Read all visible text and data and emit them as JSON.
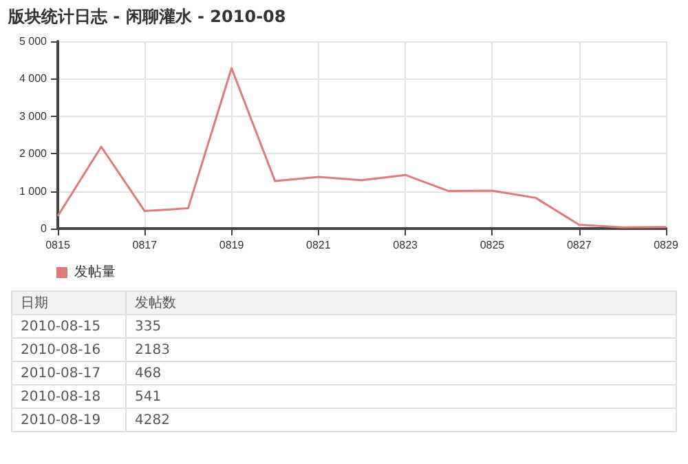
{
  "chart_data": [
    {
      "type": "line",
      "title": "版块统计日志 - 闲聊灌水 - 2010-08",
      "x": [
        "2010-08-15",
        "2010-08-16",
        "2010-08-17",
        "2010-08-18",
        "2010-08-19",
        "2010-08-20",
        "2010-08-21",
        "2010-08-22",
        "2010-08-23",
        "2010-08-24",
        "2010-08-25",
        "2010-08-26",
        "2010-08-27",
        "2010-08-28",
        "2010-08-29"
      ],
      "series": [
        {
          "name": "发帖量",
          "color": "#e07b7b",
          "values": [
            335,
            2183,
            468,
            541,
            4282,
            1270,
            1380,
            1290,
            1430,
            1000,
            1010,
            820,
            100,
            30,
            40
          ]
        }
      ],
      "xlim": [
        "2010-08-15",
        "2010-08-29"
      ],
      "xticks": [
        {
          "value": "2010-08-15",
          "label": "0815"
        },
        {
          "value": "2010-08-17",
          "label": "0817"
        },
        {
          "value": "2010-08-19",
          "label": "0819"
        },
        {
          "value": "2010-08-21",
          "label": "0821"
        },
        {
          "value": "2010-08-23",
          "label": "0823"
        },
        {
          "value": "2010-08-25",
          "label": "0825"
        },
        {
          "value": "2010-08-27",
          "label": "0827"
        },
        {
          "value": "2010-08-29",
          "label": "0829"
        }
      ],
      "ylim": [
        0,
        5000
      ],
      "yticks": [
        0,
        {
          "value": 1000,
          "label": "1 000"
        },
        {
          "value": 2000,
          "label": "2 000"
        },
        {
          "value": 3000,
          "label": "3 000"
        },
        {
          "value": 4000,
          "label": "4 000"
        },
        {
          "value": 5000,
          "label": "5 000"
        }
      ],
      "grid": true,
      "legend": "bottom left",
      "marker": "none",
      "line_style": "solid"
    },
    {
      "type": "other",
      "categories": [
        "2010-08-15",
        "2010-08-16",
        "2010-08-17",
        "2010-08-18",
        "2010-08-19"
      ],
      "value_labels": [
        "335",
        "2183",
        "468",
        "541",
        "4282"
      ],
      "annotations": [
        "日期",
        "发帖数"
      ]
    }
  ]
}
